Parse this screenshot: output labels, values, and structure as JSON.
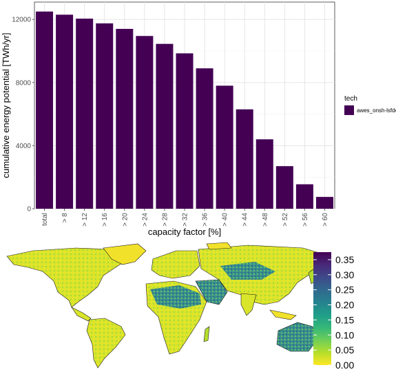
{
  "chart_data": [
    {
      "type": "bar",
      "categories": [
        "total",
        "> 8",
        "> 12",
        "> 16",
        "> 20",
        "> 24",
        "> 28",
        "> 32",
        "> 36",
        "> 40",
        "> 44",
        "> 48",
        "> 52",
        "> 56",
        "> 60"
      ],
      "series": [
        {
          "name": "awes_onsh-lsfdef",
          "values": [
            12500,
            12300,
            12050,
            11750,
            11400,
            10950,
            10450,
            9850,
            8900,
            7800,
            6300,
            4400,
            2700,
            1550,
            750
          ],
          "color": "#440154"
        }
      ],
      "xlabel": "capacity factor [%]",
      "ylabel": "cumulative energy potential [TWh/yr]",
      "ylim": [
        0,
        13100
      ],
      "yticks": [
        0,
        4000,
        8000,
        12000
      ],
      "grid": true,
      "legend": {
        "title": "tech",
        "placement": "right"
      }
    },
    {
      "type": "heatmap",
      "colorbar": {
        "ticks": [
          "0.00",
          "0.05",
          "0.10",
          "0.15",
          "0.20",
          "0.25",
          "0.30",
          "0.35"
        ],
        "range": [
          0,
          0.375
        ],
        "colors": [
          "#fde725",
          "#b5de2b",
          "#6ece58",
          "#35b779",
          "#1f9e89",
          "#26828e",
          "#31688e",
          "#3e4989",
          "#482878",
          "#440154"
        ],
        "placement": "right"
      }
    }
  ]
}
